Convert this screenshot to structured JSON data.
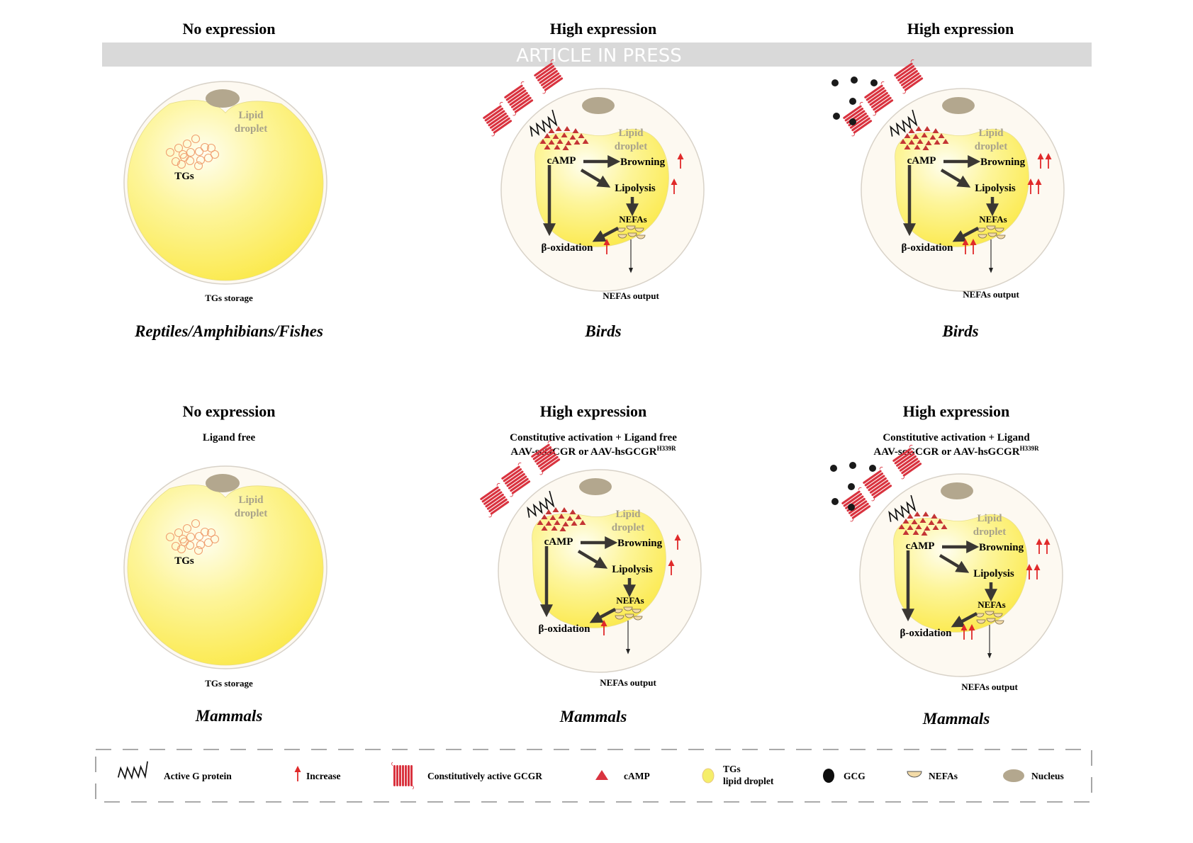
{
  "banner": {
    "text": "ARTICLE IN PRESS"
  },
  "colors": {
    "cell_fill": "#fdf9f1",
    "cell_stroke": "#d8d2c8",
    "droplet": "#fcec57",
    "droplet_light": "#fffde0",
    "nucleus": "#b3a78e",
    "receptor": "#d9333f",
    "camp": "#c43535",
    "increase": "#e02a2a",
    "pathway_arrow": "#3a3733",
    "gcg": "#1a1a1a",
    "nefa": "#f3dba8",
    "lipid_label": "#a8a28a"
  },
  "panels": [
    {
      "id": "top-left",
      "heading": "No expression",
      "conditions": [],
      "type": "none",
      "ligand": false,
      "species": "Reptiles/Amphibians/Fishes",
      "labels": {
        "lipid": [
          "Lipid",
          "droplet"
        ],
        "tgs": "TGs",
        "storage": "TGs storage"
      }
    },
    {
      "id": "top-middle",
      "heading": "High expression",
      "conditions": [],
      "type": "active",
      "ligand": false,
      "increase_level": 1,
      "species": "Birds",
      "labels": {
        "lipid": [
          "Lipid",
          "droplet"
        ],
        "camp": "cAMP",
        "browning": "Browning",
        "lipolysis": "Lipolysis",
        "nefas": "NEFAs",
        "boxidation": "β-oxidation",
        "output": "NEFAs output"
      }
    },
    {
      "id": "top-right",
      "heading": "High expression",
      "conditions": [],
      "type": "active",
      "ligand": true,
      "increase_level": 2,
      "species": "Birds",
      "labels": {
        "lipid": [
          "Lipid",
          "droplet"
        ],
        "camp": "cAMP",
        "browning": "Browning",
        "lipolysis": "Lipolysis",
        "nefas": "NEFAs",
        "boxidation": "β-oxidation",
        "output": "NEFAs output"
      }
    },
    {
      "id": "bottom-left",
      "heading": "No expression",
      "conditions": [
        "Ligand free"
      ],
      "type": "none",
      "ligand": false,
      "species": "Mammals",
      "labels": {
        "lipid": [
          "Lipid",
          "droplet"
        ],
        "tgs": "TGs",
        "storage": "TGs storage"
      }
    },
    {
      "id": "bottom-middle",
      "heading": "High expression",
      "conditions": [
        "Constitutive activation + Ligand free",
        "AAV-scGCGR or AAV-hsGCGR"
      ],
      "superscript": "H339R",
      "type": "active",
      "ligand": false,
      "increase_level": 1,
      "species": "Mammals",
      "labels": {
        "lipid": [
          "Lipid",
          "droplet"
        ],
        "camp": "cAMP",
        "browning": "Browning",
        "lipolysis": "Lipolysis",
        "nefas": "NEFAs",
        "boxidation": "β-oxidation",
        "output": "NEFAs output"
      }
    },
    {
      "id": "bottom-right",
      "heading": "High expression",
      "conditions": [
        "Constitutive activation + Ligand",
        "AAV-scGCGR or AAV-hsGCGR"
      ],
      "superscript": "H339R",
      "type": "active",
      "ligand": true,
      "increase_level": 2,
      "species": "Mammals",
      "labels": {
        "lipid": [
          "Lipid",
          "droplet"
        ],
        "camp": "cAMP",
        "browning": "Browning",
        "lipolysis": "Lipolysis",
        "nefas": "NEFAs",
        "boxidation": "β-oxidation",
        "output": "NEFAs output"
      }
    }
  ],
  "legend": [
    {
      "icon": "active-g-protein-icon",
      "label": "Active G protein"
    },
    {
      "icon": "increase-arrow-icon",
      "label": "Increase"
    },
    {
      "icon": "gcgr-receptor-icon",
      "label": "Constitutively active GCGR"
    },
    {
      "icon": "camp-triangle-icon",
      "label": "cAMP"
    },
    {
      "icon": "lipid-droplet-icon",
      "label": "TGs\nlipid droplet"
    },
    {
      "icon": "gcg-dot-icon",
      "label": "GCG"
    },
    {
      "icon": "nefa-icon",
      "label": "NEFAs"
    },
    {
      "icon": "nucleus-icon",
      "label": "Nucleus"
    }
  ]
}
